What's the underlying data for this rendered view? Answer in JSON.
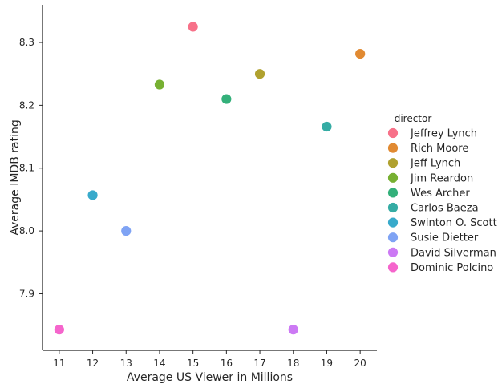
{
  "chart_data": {
    "type": "scatter",
    "title": "",
    "xlabel": "Average US Viewer in Millions",
    "ylabel": "Average IMDB rating",
    "xlim": [
      10.5,
      20.5
    ],
    "ylim": [
      7.81,
      8.36
    ],
    "x_ticks": [
      "11",
      "12",
      "13",
      "14",
      "15",
      "16",
      "17",
      "18",
      "19",
      "20"
    ],
    "y_ticks": [
      "7.9",
      "8.0",
      "8.1",
      "8.2",
      "8.3"
    ],
    "grid": false,
    "legend_title": "director",
    "legend_position": "right",
    "series": [
      {
        "name": "Jeffrey Lynch",
        "color": "#f77189",
        "x": [
          15
        ],
        "y": [
          8.325
        ]
      },
      {
        "name": "Rich Moore",
        "color": "#e18a32",
        "x": [
          20
        ],
        "y": [
          8.282
        ]
      },
      {
        "name": "Jeff Lynch",
        "color": "#b0a12f",
        "x": [
          17
        ],
        "y": [
          8.25
        ]
      },
      {
        "name": "Jim Reardon",
        "color": "#77b032",
        "x": [
          14
        ],
        "y": [
          8.233
        ]
      },
      {
        "name": "Wes Archer",
        "color": "#33b07a",
        "x": [
          16
        ],
        "y": [
          8.21
        ]
      },
      {
        "name": "Carlos Baeza",
        "color": "#35aca4",
        "x": [
          19
        ],
        "y": [
          8.166
        ]
      },
      {
        "name": "Swinton O. Scott",
        "color": "#38aacb",
        "x": [
          12
        ],
        "y": [
          8.057
        ]
      },
      {
        "name": "Susie Dietter",
        "color": "#7fa3f4",
        "x": [
          13
        ],
        "y": [
          8.0
        ]
      },
      {
        "name": "David Silverman",
        "color": "#cc79f4",
        "x": [
          18
        ],
        "y": [
          7.843
        ]
      },
      {
        "name": "Dominic Polcino",
        "color": "#f565cc",
        "x": [
          11
        ],
        "y": [
          7.843
        ]
      }
    ]
  }
}
